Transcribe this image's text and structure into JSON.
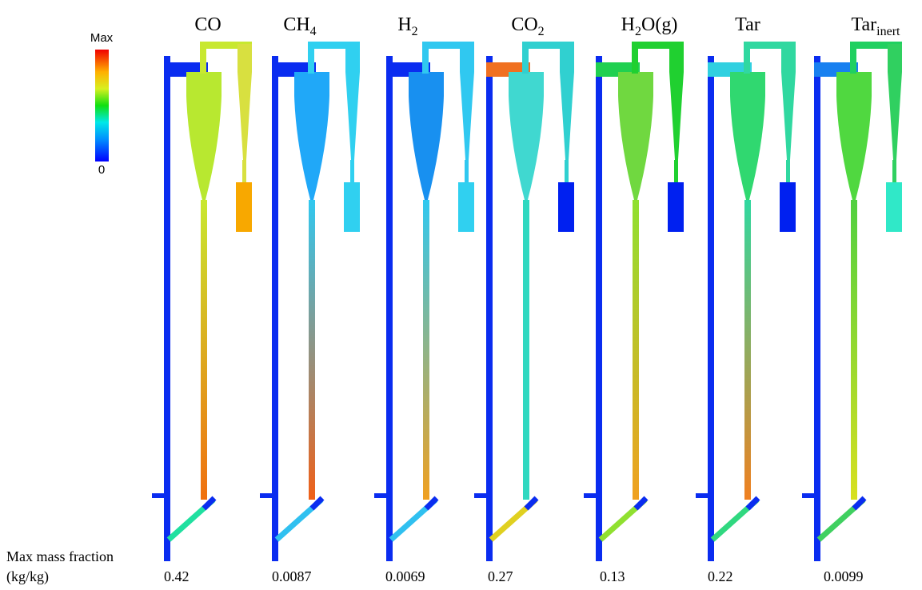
{
  "colorbar": {
    "max_label": "Max",
    "min_label": "0"
  },
  "row_label": {
    "line1": "Max mass fraction",
    "line2": "(kg/kg)"
  },
  "panels": [
    {
      "name": "CO",
      "sub": null,
      "max_mass_fraction": 0.42
    },
    {
      "name": "CH",
      "sub": "4",
      "max_mass_fraction": 0.0087
    },
    {
      "name": "H",
      "sub": "2",
      "max_mass_fraction": 0.0069
    },
    {
      "name": "CO",
      "sub": "2",
      "max_mass_fraction": 0.27
    },
    {
      "name": "H",
      "sub": "2",
      "suffix": "O(g)",
      "max_mass_fraction": 0.13
    },
    {
      "name": "Tar",
      "sub": null,
      "max_mass_fraction": 0.22
    },
    {
      "name": "Tar",
      "sub": "inert",
      "max_mass_fraction": 0.0099
    }
  ]
}
